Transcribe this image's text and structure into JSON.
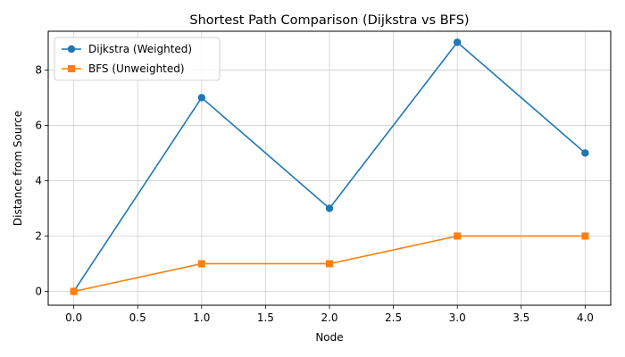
{
  "chart_data": {
    "type": "line",
    "title": "Shortest Path Comparison (Dijkstra vs BFS)",
    "xlabel": "Node",
    "ylabel": "Distance from Source",
    "x": [
      0,
      1,
      2,
      3,
      4
    ],
    "xlim": [
      -0.2,
      4.2
    ],
    "ylim": [
      -0.5,
      9.4
    ],
    "xticks": [
      0.0,
      0.5,
      1.0,
      1.5,
      2.0,
      2.5,
      3.0,
      3.5,
      4.0
    ],
    "xtick_labels": [
      "0.0",
      "0.5",
      "1.0",
      "1.5",
      "2.0",
      "2.5",
      "3.0",
      "3.5",
      "4.0"
    ],
    "yticks": [
      0,
      2,
      4,
      6,
      8
    ],
    "ytick_labels": [
      "0",
      "2",
      "4",
      "6",
      "8"
    ],
    "grid": true,
    "legend_position": "top-left",
    "series": [
      {
        "name": "Dijkstra (Weighted)",
        "values": [
          0,
          7,
          3,
          9,
          5
        ],
        "color": "#1f77b4",
        "marker": "circle"
      },
      {
        "name": "BFS (Unweighted)",
        "values": [
          0,
          1,
          1,
          2,
          2
        ],
        "color": "#ff7f0e",
        "marker": "square"
      }
    ]
  }
}
